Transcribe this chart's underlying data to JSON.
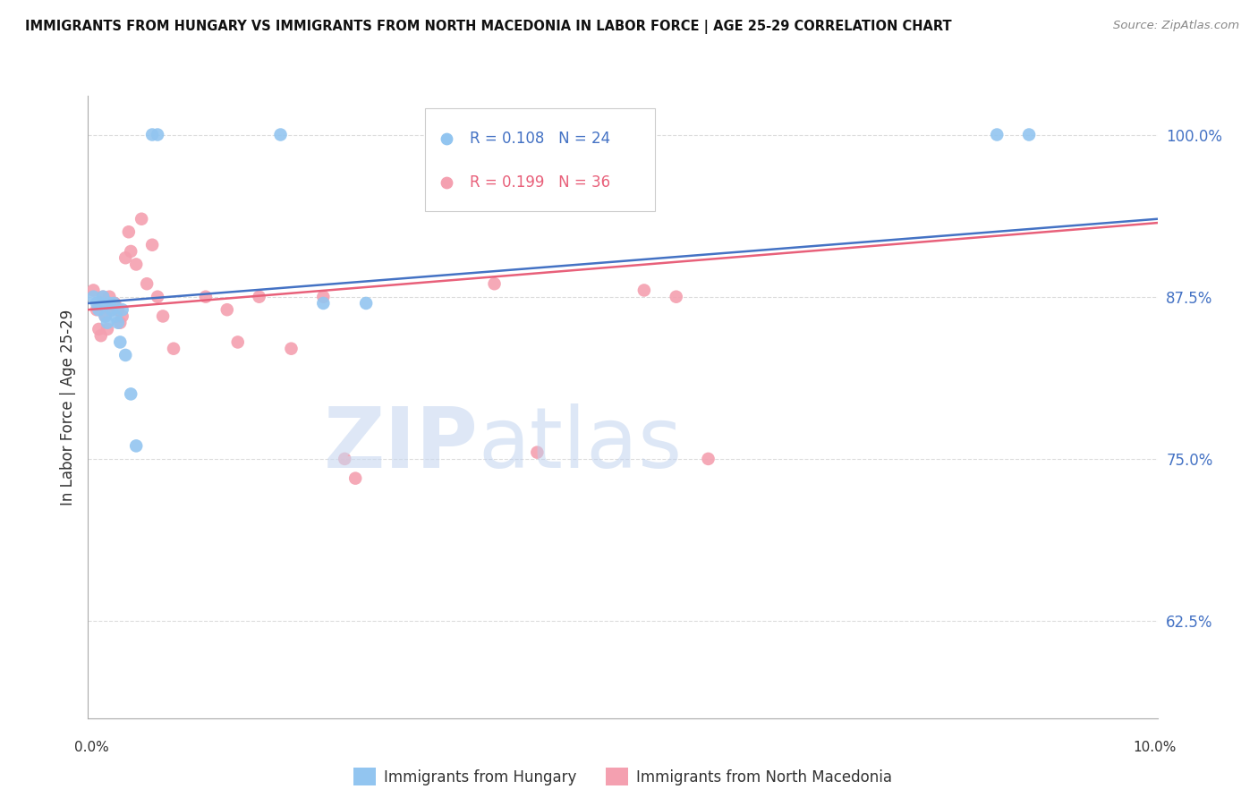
{
  "title": "IMMIGRANTS FROM HUNGARY VS IMMIGRANTS FROM NORTH MACEDONIA IN LABOR FORCE | AGE 25-29 CORRELATION CHART",
  "source": "Source: ZipAtlas.com",
  "ylabel": "In Labor Force | Age 25-29",
  "xlim": [
    0.0,
    10.0
  ],
  "ylim": [
    55.0,
    103.0
  ],
  "yticks": [
    62.5,
    75.0,
    87.5,
    100.0
  ],
  "ytick_labels": [
    "62.5%",
    "75.0%",
    "87.5%",
    "100.0%"
  ],
  "xticks": [
    0.0,
    1.25,
    2.5,
    3.75,
    5.0,
    6.25,
    7.5,
    8.75,
    10.0
  ],
  "legend_r_hungary": "R = 0.108",
  "legend_n_hungary": "N = 24",
  "legend_r_macedonia": "R = 0.199",
  "legend_n_macedonia": "N = 36",
  "hungary_color": "#92C5F0",
  "macedonia_color": "#F4A0B0",
  "hungary_line_color": "#4472C4",
  "macedonia_line_color": "#E8607A",
  "hungary_x": [
    0.05,
    0.08,
    0.1,
    0.12,
    0.14,
    0.16,
    0.18,
    0.2,
    0.22,
    0.24,
    0.26,
    0.28,
    0.3,
    0.32,
    0.35,
    0.4,
    0.45,
    0.6,
    0.65,
    1.8,
    2.2,
    2.6,
    8.5,
    8.8
  ],
  "hungary_y": [
    87.5,
    87.0,
    86.5,
    87.0,
    87.5,
    86.0,
    85.5,
    87.0,
    86.5,
    87.0,
    86.0,
    85.5,
    84.0,
    86.5,
    83.0,
    80.0,
    76.0,
    100.0,
    100.0,
    100.0,
    87.0,
    87.0,
    100.0,
    100.0
  ],
  "macedonia_x": [
    0.05,
    0.08,
    0.1,
    0.12,
    0.14,
    0.16,
    0.18,
    0.2,
    0.22,
    0.25,
    0.28,
    0.3,
    0.32,
    0.35,
    0.38,
    0.4,
    0.45,
    0.5,
    0.55,
    0.6,
    0.65,
    0.7,
    0.8,
    1.1,
    1.3,
    1.4,
    1.6,
    1.9,
    2.2,
    2.4,
    2.5,
    3.8,
    4.2,
    5.2,
    5.5,
    5.8
  ],
  "macedonia_y": [
    88.0,
    86.5,
    85.0,
    84.5,
    87.5,
    86.0,
    85.0,
    87.5,
    86.5,
    87.0,
    86.5,
    85.5,
    86.0,
    90.5,
    92.5,
    91.0,
    90.0,
    93.5,
    88.5,
    91.5,
    87.5,
    86.0,
    83.5,
    87.5,
    86.5,
    84.0,
    87.5,
    83.5,
    87.5,
    75.0,
    73.5,
    88.5,
    75.5,
    88.0,
    87.5,
    75.0
  ],
  "background_color": "#FFFFFF",
  "grid_color": "#DCDCDC"
}
